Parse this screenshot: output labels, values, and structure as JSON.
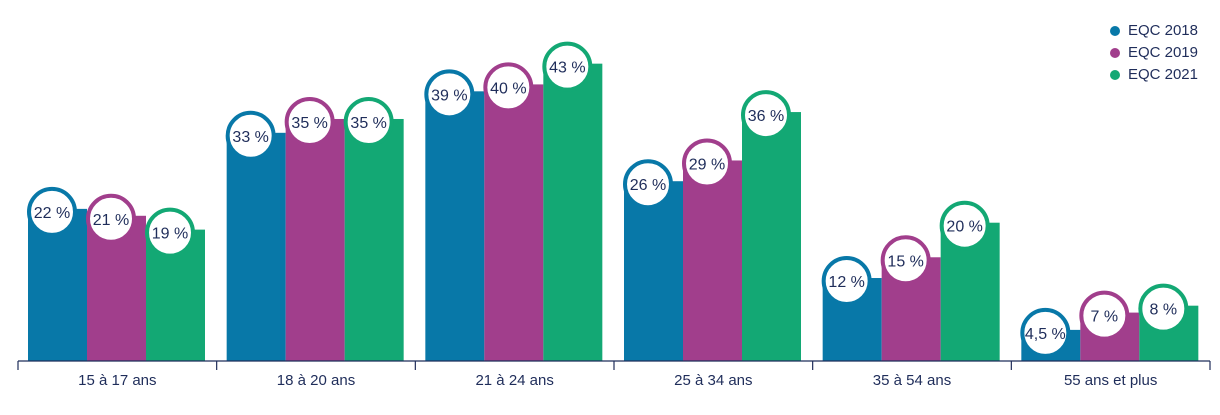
{
  "chart_data": {
    "type": "bar",
    "categories": [
      "15 à 17 ans",
      "18 à 20 ans",
      "21 à 24 ans",
      "25 à 34 ans",
      "35 à 54 ans",
      "55 ans et plus"
    ],
    "series": [
      {
        "name": "EQC 2018",
        "color": "#0878a8",
        "values": [
          22,
          33,
          39,
          26,
          12,
          4.5
        ],
        "labels": [
          "22 %",
          "33 %",
          "39 %",
          "26 %",
          "12 %",
          "4,5 %"
        ]
      },
      {
        "name": "EQC 2019",
        "color": "#a13e8c",
        "values": [
          21,
          35,
          40,
          29,
          15,
          7
        ],
        "labels": [
          "21 %",
          "35 %",
          "40 %",
          "29 %",
          "15 %",
          "7 %"
        ]
      },
      {
        "name": "EQC 2021",
        "color": "#13a874",
        "values": [
          19,
          35,
          43,
          36,
          20,
          8
        ],
        "labels": [
          "19 %",
          "35 %",
          "43 %",
          "36 %",
          "20 %",
          "8 %"
        ]
      }
    ],
    "legend": "top-right",
    "grid": false,
    "ylim": [
      0,
      47
    ]
  }
}
